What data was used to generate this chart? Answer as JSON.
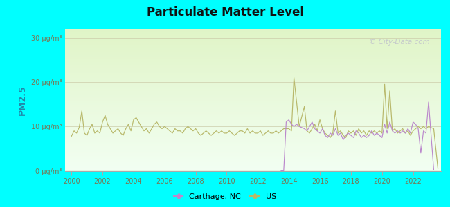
{
  "title": "Particulate Matter Level",
  "ylabel": "PM2.5",
  "background_outer": "#00FFFF",
  "ylim": [
    0,
    32
  ],
  "yticks": [
    0,
    10,
    20,
    30
  ],
  "ytick_labels": [
    "0 μg/m³",
    "10 μg/m³",
    "20 μg/m³",
    "30 μg/m³"
  ],
  "xticks": [
    2000,
    2002,
    2004,
    2006,
    2008,
    2010,
    2012,
    2014,
    2016,
    2018,
    2020,
    2022
  ],
  "us_color": "#b8b86a",
  "carthage_color": "#bb88cc",
  "tick_color": "#888866",
  "grid_color": "#ccccaa",
  "watermark": "© City-Data.com",
  "legend_carthage": "Carthage, NC",
  "legend_us": "US",
  "xlim_left": 1999.6,
  "xlim_right": 2023.8,
  "us_data": [
    [
      2000.0,
      7.8
    ],
    [
      2000.17,
      9.0
    ],
    [
      2000.33,
      8.5
    ],
    [
      2000.5,
      9.8
    ],
    [
      2000.67,
      13.5
    ],
    [
      2000.83,
      8.5
    ],
    [
      2001.0,
      8.0
    ],
    [
      2001.17,
      9.5
    ],
    [
      2001.33,
      10.5
    ],
    [
      2001.5,
      8.5
    ],
    [
      2001.67,
      9.0
    ],
    [
      2001.83,
      8.5
    ],
    [
      2002.0,
      11.0
    ],
    [
      2002.17,
      12.5
    ],
    [
      2002.33,
      10.5
    ],
    [
      2002.5,
      9.5
    ],
    [
      2002.67,
      8.5
    ],
    [
      2002.83,
      9.0
    ],
    [
      2003.0,
      9.5
    ],
    [
      2003.17,
      8.5
    ],
    [
      2003.33,
      8.0
    ],
    [
      2003.5,
      9.5
    ],
    [
      2003.67,
      10.5
    ],
    [
      2003.83,
      9.0
    ],
    [
      2004.0,
      11.5
    ],
    [
      2004.17,
      12.0
    ],
    [
      2004.33,
      11.0
    ],
    [
      2004.5,
      10.0
    ],
    [
      2004.67,
      9.0
    ],
    [
      2004.83,
      9.5
    ],
    [
      2005.0,
      8.5
    ],
    [
      2005.17,
      9.5
    ],
    [
      2005.33,
      10.5
    ],
    [
      2005.5,
      11.0
    ],
    [
      2005.67,
      10.0
    ],
    [
      2005.83,
      9.5
    ],
    [
      2006.0,
      10.0
    ],
    [
      2006.17,
      9.5
    ],
    [
      2006.33,
      9.0
    ],
    [
      2006.5,
      8.5
    ],
    [
      2006.67,
      9.5
    ],
    [
      2006.83,
      9.0
    ],
    [
      2007.0,
      9.0
    ],
    [
      2007.17,
      8.5
    ],
    [
      2007.33,
      9.5
    ],
    [
      2007.5,
      10.0
    ],
    [
      2007.67,
      9.5
    ],
    [
      2007.83,
      9.0
    ],
    [
      2008.0,
      9.5
    ],
    [
      2008.17,
      8.5
    ],
    [
      2008.33,
      8.0
    ],
    [
      2008.5,
      8.5
    ],
    [
      2008.67,
      9.0
    ],
    [
      2008.83,
      8.5
    ],
    [
      2009.0,
      8.0
    ],
    [
      2009.17,
      8.5
    ],
    [
      2009.33,
      9.0
    ],
    [
      2009.5,
      8.5
    ],
    [
      2009.67,
      9.0
    ],
    [
      2009.83,
      8.5
    ],
    [
      2010.0,
      8.5
    ],
    [
      2010.17,
      9.0
    ],
    [
      2010.33,
      8.5
    ],
    [
      2010.5,
      8.0
    ],
    [
      2010.67,
      8.5
    ],
    [
      2010.83,
      9.0
    ],
    [
      2011.0,
      9.0
    ],
    [
      2011.17,
      8.5
    ],
    [
      2011.33,
      9.5
    ],
    [
      2011.5,
      8.5
    ],
    [
      2011.67,
      9.0
    ],
    [
      2011.83,
      8.5
    ],
    [
      2012.0,
      8.5
    ],
    [
      2012.17,
      9.0
    ],
    [
      2012.33,
      8.0
    ],
    [
      2012.5,
      8.5
    ],
    [
      2012.67,
      9.0
    ],
    [
      2012.83,
      8.5
    ],
    [
      2013.0,
      8.5
    ],
    [
      2013.17,
      9.0
    ],
    [
      2013.33,
      8.5
    ],
    [
      2013.5,
      9.0
    ],
    [
      2013.67,
      9.5
    ],
    [
      2014.0,
      9.5
    ],
    [
      2014.17,
      9.0
    ],
    [
      2014.33,
      21.0
    ],
    [
      2014.5,
      15.5
    ],
    [
      2014.67,
      10.0
    ],
    [
      2015.0,
      14.5
    ],
    [
      2015.17,
      9.0
    ],
    [
      2015.33,
      8.5
    ],
    [
      2015.5,
      9.5
    ],
    [
      2015.67,
      10.5
    ],
    [
      2015.83,
      9.0
    ],
    [
      2016.0,
      11.5
    ],
    [
      2016.17,
      9.5
    ],
    [
      2016.33,
      8.5
    ],
    [
      2016.5,
      8.0
    ],
    [
      2016.67,
      7.5
    ],
    [
      2016.83,
      8.5
    ],
    [
      2017.0,
      13.5
    ],
    [
      2017.17,
      8.5
    ],
    [
      2017.33,
      9.0
    ],
    [
      2017.5,
      8.0
    ],
    [
      2017.67,
      7.5
    ],
    [
      2017.83,
      9.0
    ],
    [
      2018.0,
      8.5
    ],
    [
      2018.17,
      9.0
    ],
    [
      2018.33,
      8.0
    ],
    [
      2018.5,
      9.5
    ],
    [
      2018.67,
      8.5
    ],
    [
      2018.83,
      9.0
    ],
    [
      2019.0,
      8.0
    ],
    [
      2019.17,
      9.0
    ],
    [
      2019.33,
      8.5
    ],
    [
      2019.5,
      9.0
    ],
    [
      2019.67,
      8.5
    ],
    [
      2019.83,
      9.0
    ],
    [
      2020.0,
      8.5
    ],
    [
      2020.17,
      19.5
    ],
    [
      2020.33,
      9.5
    ],
    [
      2020.5,
      18.0
    ],
    [
      2020.67,
      9.0
    ],
    [
      2020.83,
      9.5
    ],
    [
      2021.0,
      8.5
    ],
    [
      2021.17,
      9.0
    ],
    [
      2021.33,
      9.5
    ],
    [
      2021.5,
      8.5
    ],
    [
      2021.67,
      9.0
    ],
    [
      2021.83,
      8.0
    ],
    [
      2022.0,
      9.0
    ],
    [
      2022.17,
      9.5
    ],
    [
      2022.33,
      10.0
    ],
    [
      2022.5,
      9.5
    ],
    [
      2022.67,
      10.0
    ],
    [
      2022.83,
      9.5
    ],
    [
      2023.0,
      10.0
    ],
    [
      2023.33,
      9.5
    ],
    [
      2023.6,
      0.5
    ]
  ],
  "carthage_data": [
    [
      2013.5,
      0.0
    ],
    [
      2013.67,
      0.0
    ],
    [
      2013.83,
      11.0
    ],
    [
      2014.0,
      11.5
    ],
    [
      2014.17,
      10.5
    ],
    [
      2014.33,
      10.0
    ],
    [
      2014.5,
      10.5
    ],
    [
      2014.67,
      10.0
    ],
    [
      2015.0,
      9.5
    ],
    [
      2015.17,
      9.0
    ],
    [
      2015.33,
      10.0
    ],
    [
      2015.5,
      11.0
    ],
    [
      2015.67,
      9.5
    ],
    [
      2015.83,
      9.0
    ],
    [
      2016.0,
      8.5
    ],
    [
      2016.17,
      9.5
    ],
    [
      2016.33,
      8.0
    ],
    [
      2016.5,
      7.5
    ],
    [
      2016.67,
      8.5
    ],
    [
      2016.83,
      8.0
    ],
    [
      2017.0,
      9.5
    ],
    [
      2017.17,
      8.0
    ],
    [
      2017.33,
      8.5
    ],
    [
      2017.5,
      7.0
    ],
    [
      2017.67,
      8.0
    ],
    [
      2017.83,
      8.5
    ],
    [
      2018.0,
      8.0
    ],
    [
      2018.17,
      7.5
    ],
    [
      2018.33,
      9.0
    ],
    [
      2018.5,
      8.5
    ],
    [
      2018.67,
      7.5
    ],
    [
      2018.83,
      8.0
    ],
    [
      2019.0,
      7.5
    ],
    [
      2019.17,
      8.0
    ],
    [
      2019.33,
      9.0
    ],
    [
      2019.5,
      8.0
    ],
    [
      2019.67,
      8.5
    ],
    [
      2019.83,
      8.0
    ],
    [
      2020.0,
      7.5
    ],
    [
      2020.17,
      10.5
    ],
    [
      2020.33,
      8.5
    ],
    [
      2020.5,
      11.0
    ],
    [
      2020.67,
      9.0
    ],
    [
      2020.83,
      8.5
    ],
    [
      2021.0,
      9.0
    ],
    [
      2021.17,
      8.5
    ],
    [
      2021.33,
      9.0
    ],
    [
      2021.5,
      8.5
    ],
    [
      2021.67,
      9.5
    ],
    [
      2021.83,
      8.5
    ],
    [
      2022.0,
      11.0
    ],
    [
      2022.17,
      10.5
    ],
    [
      2022.33,
      9.5
    ],
    [
      2022.5,
      4.0
    ],
    [
      2022.67,
      9.0
    ],
    [
      2022.83,
      8.5
    ],
    [
      2023.0,
      15.5
    ],
    [
      2023.33,
      0.2
    ]
  ]
}
